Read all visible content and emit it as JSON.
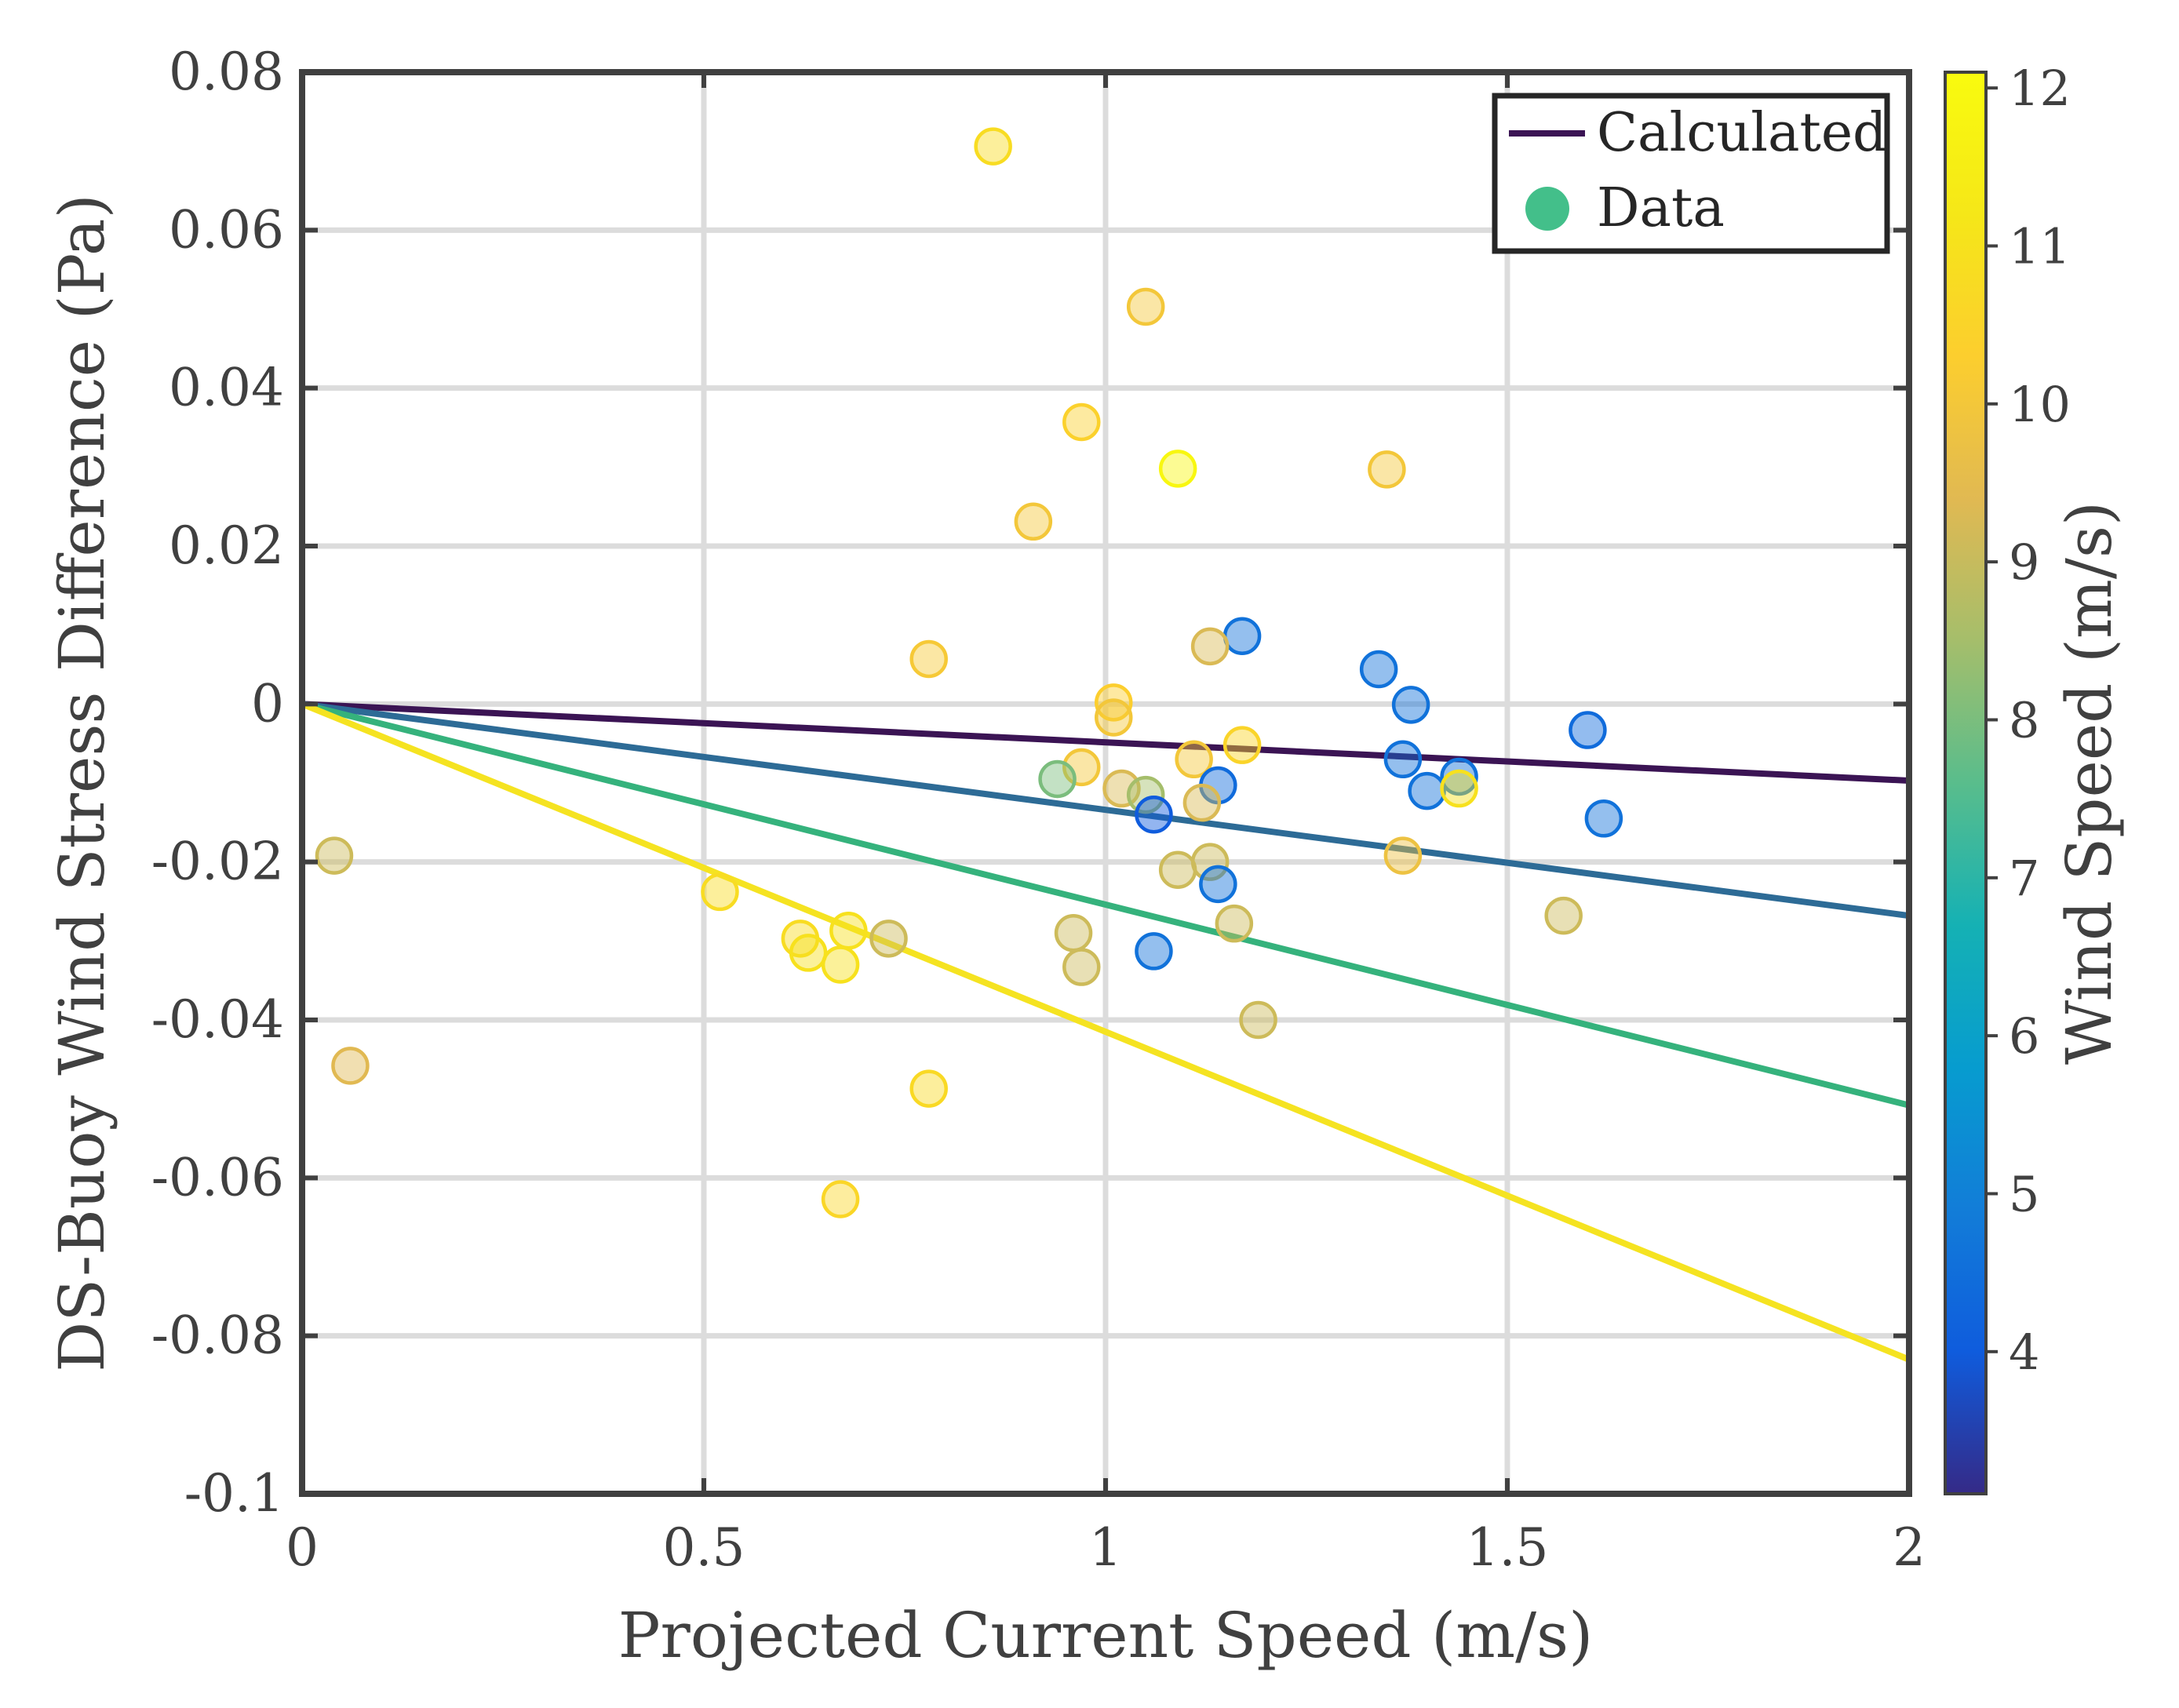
{
  "chart_data": {
    "type": "scatter",
    "xlabel": "Projected Current Speed (m/s)",
    "ylabel": "DS-Buoy Wind Stress Difference (Pa)",
    "xlim": [
      0,
      2
    ],
    "ylim": [
      -0.1,
      0.08
    ],
    "x_ticks": [
      0,
      0.5,
      1,
      1.5,
      2
    ],
    "x_tick_labels": [
      "0",
      "0.5",
      "1",
      "1.5",
      "2"
    ],
    "y_ticks": [
      -0.1,
      -0.08,
      -0.06,
      -0.04,
      -0.02,
      0,
      0.02,
      0.04,
      0.06,
      0.08
    ],
    "y_tick_labels": [
      "-0.1",
      "-0.08",
      "-0.06",
      "-0.04",
      "-0.02",
      "0",
      "0.02",
      "0.04",
      "0.06",
      "0.08"
    ],
    "grid": true,
    "legend": {
      "position": "top-right",
      "entries": [
        {
          "label": "Calculated",
          "marker": "line",
          "color": "#3b1454"
        },
        {
          "label": "Data",
          "marker": "circle",
          "color": "#43bf8a"
        }
      ]
    },
    "colorbar": {
      "label": "Wind Speed (m/s)",
      "range": [
        3.1,
        12.1
      ],
      "ticks": [
        4,
        5,
        6,
        7,
        8,
        9,
        10,
        11,
        12
      ],
      "tick_labels": [
        "4",
        "5",
        "6",
        "7",
        "8",
        "9",
        "10",
        "11",
        "12"
      ],
      "colormap": "parula"
    },
    "lines": [
      {
        "x": [
          0,
          2
        ],
        "y": [
          0,
          -0.0097
        ],
        "color": "#3b1454"
      },
      {
        "x": [
          0,
          2
        ],
        "y": [
          0,
          -0.0268
        ],
        "color": "#2d6b96"
      },
      {
        "x": [
          0,
          2
        ],
        "y": [
          0,
          -0.0508
        ],
        "color": "#35b27c"
      },
      {
        "x": [
          0,
          2
        ],
        "y": [
          0,
          -0.083
        ],
        "color": "#f5e321"
      }
    ],
    "points": [
      {
        "x": 0.86,
        "y": 0.0706,
        "wind": 10.8
      },
      {
        "x": 1.05,
        "y": 0.0503,
        "wind": 10.0
      },
      {
        "x": 0.97,
        "y": 0.0357,
        "wind": 10.4
      },
      {
        "x": 1.09,
        "y": 0.0298,
        "wind": 11.9
      },
      {
        "x": 1.35,
        "y": 0.0297,
        "wind": 10.0
      },
      {
        "x": 0.91,
        "y": 0.0231,
        "wind": 10.0
      },
      {
        "x": 1.17,
        "y": 0.0086,
        "wind": 4.6
      },
      {
        "x": 1.13,
        "y": 0.0073,
        "wind": 9.3
      },
      {
        "x": 0.78,
        "y": 0.0057,
        "wind": 10.1
      },
      {
        "x": 1.34,
        "y": 0.0044,
        "wind": 4.6
      },
      {
        "x": 1.01,
        "y": 0.0002,
        "wind": 10.3
      },
      {
        "x": 1.38,
        "y": -0.0001,
        "wind": 4.6
      },
      {
        "x": 1.01,
        "y": -0.0017,
        "wind": 10.0
      },
      {
        "x": 1.17,
        "y": -0.0052,
        "wind": 10.5
      },
      {
        "x": 1.6,
        "y": -0.0033,
        "wind": 4.4
      },
      {
        "x": 1.37,
        "y": -0.007,
        "wind": 4.6
      },
      {
        "x": 1.11,
        "y": -0.007,
        "wind": 10.0
      },
      {
        "x": 0.97,
        "y": -0.008,
        "wind": 10.0
      },
      {
        "x": 0.94,
        "y": -0.0095,
        "wind": 8.0
      },
      {
        "x": 1.44,
        "y": -0.0092,
        "wind": 4.6
      },
      {
        "x": 1.14,
        "y": -0.0103,
        "wind": 4.4
      },
      {
        "x": 1.02,
        "y": -0.0107,
        "wind": 9.3
      },
      {
        "x": 1.05,
        "y": -0.0115,
        "wind": 8.5
      },
      {
        "x": 1.4,
        "y": -0.011,
        "wind": 4.6
      },
      {
        "x": 1.44,
        "y": -0.0107,
        "wind": 11.0
      },
      {
        "x": 1.12,
        "y": -0.0125,
        "wind": 9.3
      },
      {
        "x": 1.06,
        "y": -0.014,
        "wind": 4.0
      },
      {
        "x": 1.62,
        "y": -0.0145,
        "wind": 4.6
      },
      {
        "x": 0.04,
        "y": -0.0192,
        "wind": 9.1
      },
      {
        "x": 1.37,
        "y": -0.0192,
        "wind": 9.8
      },
      {
        "x": 1.13,
        "y": -0.02,
        "wind": 9.1
      },
      {
        "x": 1.09,
        "y": -0.021,
        "wind": 9.1
      },
      {
        "x": 1.14,
        "y": -0.0228,
        "wind": 4.6
      },
      {
        "x": 0.52,
        "y": -0.0238,
        "wind": 10.8
      },
      {
        "x": 1.57,
        "y": -0.0268,
        "wind": 9.1
      },
      {
        "x": 1.16,
        "y": -0.0278,
        "wind": 9.1
      },
      {
        "x": 0.68,
        "y": -0.0287,
        "wind": 11.0
      },
      {
        "x": 0.96,
        "y": -0.029,
        "wind": 9.1
      },
      {
        "x": 0.62,
        "y": -0.0297,
        "wind": 10.8
      },
      {
        "x": 0.73,
        "y": -0.0297,
        "wind": 9.1
      },
      {
        "x": 1.06,
        "y": -0.0313,
        "wind": 4.6
      },
      {
        "x": 0.63,
        "y": -0.0315,
        "wind": 11.0
      },
      {
        "x": 0.67,
        "y": -0.033,
        "wind": 11.0
      },
      {
        "x": 0.97,
        "y": -0.0333,
        "wind": 9.1
      },
      {
        "x": 1.19,
        "y": -0.04,
        "wind": 9.1
      },
      {
        "x": 0.06,
        "y": -0.0458,
        "wind": 9.4
      },
      {
        "x": 0.78,
        "y": -0.0487,
        "wind": 10.7
      },
      {
        "x": 0.67,
        "y": -0.0627,
        "wind": 10.6
      }
    ]
  }
}
